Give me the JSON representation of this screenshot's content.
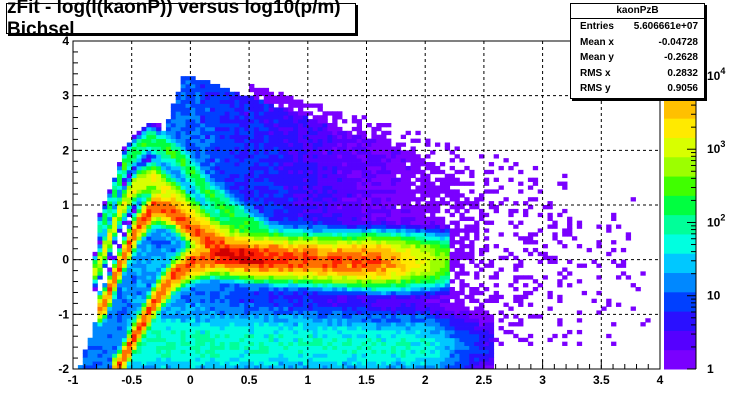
{
  "chart_data": {
    "type": "heatmap",
    "title": "zFit - log(I(kaonP)) versus log10(p/m) Bichsel",
    "xlabel": "",
    "ylabel": "",
    "xlim": [
      -1,
      4
    ],
    "ylim": [
      -2,
      4
    ],
    "x_ticks": [
      "-1",
      "-0.5",
      "0",
      "0.5",
      "1",
      "1.5",
      "2",
      "2.5",
      "3",
      "3.5",
      "4"
    ],
    "y_ticks": [
      "-2",
      "-1",
      "0",
      "1",
      "2",
      "3",
      "4"
    ],
    "z_scale": "log",
    "z_ticks": [
      {
        "value": 1,
        "base": "1",
        "exp": ""
      },
      {
        "value": 10,
        "base": "10",
        "exp": ""
      },
      {
        "value": 100,
        "base": "10",
        "exp": "2"
      },
      {
        "value": 1000,
        "base": "10",
        "exp": "3"
      },
      {
        "value": 10000,
        "base": "10",
        "exp": "4"
      }
    ],
    "z_range": [
      1,
      30000
    ],
    "grid": true,
    "bands": [
      {
        "name": "main",
        "x_start": -0.62,
        "x_end": 1.6,
        "center": [
          [
            -0.62,
            -2.0
          ],
          [
            -0.45,
            -1.3
          ],
          [
            -0.3,
            -0.75
          ],
          [
            -0.15,
            -0.3
          ],
          [
            0.0,
            -0.05
          ],
          [
            0.2,
            0.05
          ],
          [
            0.5,
            0.03
          ],
          [
            1.0,
            0.0
          ],
          [
            1.6,
            -0.02
          ]
        ],
        "peak": 9000
      },
      {
        "name": "upper",
        "x_start": -0.75,
        "x_end": 0.55,
        "center": [
          [
            -0.75,
            -0.9
          ],
          [
            -0.6,
            -0.1
          ],
          [
            -0.45,
            0.6
          ],
          [
            -0.3,
            1.0
          ],
          [
            -0.15,
            0.9
          ],
          [
            0.05,
            0.5
          ],
          [
            0.3,
            0.15
          ],
          [
            0.55,
            0.03
          ]
        ],
        "peak": 9000
      },
      {
        "name": "upper-2",
        "x_start": -0.8,
        "x_end": 0.6,
        "center": [
          [
            -0.8,
            -0.2
          ],
          [
            -0.6,
            0.9
          ],
          [
            -0.45,
            1.4
          ],
          [
            -0.3,
            1.5
          ],
          [
            -0.1,
            1.1
          ],
          [
            0.2,
            0.5
          ],
          [
            0.6,
            0.1
          ]
        ],
        "peak": 1500
      },
      {
        "name": "upper-3",
        "x_start": -0.75,
        "x_end": 0.7,
        "center": [
          [
            -0.75,
            0.6
          ],
          [
            -0.55,
            1.8
          ],
          [
            -0.35,
            2.2
          ],
          [
            -0.1,
            1.9
          ],
          [
            0.2,
            1.1
          ],
          [
            0.7,
            0.3
          ]
        ],
        "peak": 200
      },
      {
        "name": "lower",
        "x_start": -0.5,
        "x_end": 2.0,
        "center": [
          [
            -0.5,
            -1.5
          ],
          [
            0.0,
            -1.55
          ],
          [
            1.0,
            -1.55
          ],
          [
            2.0,
            -1.6
          ]
        ],
        "peak": 60
      }
    ],
    "colors": {
      "palette": [
        "#7a00ff",
        "#5500ff",
        "#2a10ff",
        "#0040ff",
        "#0088ff",
        "#00c8ff",
        "#00ffe0",
        "#00ff99",
        "#00ff40",
        "#40ff00",
        "#9cff00",
        "#d8ff00",
        "#ffea00",
        "#ffc000",
        "#ff7000",
        "#ff2000",
        "#d00000"
      ]
    }
  },
  "stats": {
    "name": "kaonPzB",
    "rows": [
      {
        "label": "Entries",
        "value": "5.606661e+07"
      },
      {
        "label": "Mean x",
        "value": "-0.04728"
      },
      {
        "label": "Mean y",
        "value": "-0.2628"
      },
      {
        "label": "RMS x",
        "value": "0.2832"
      },
      {
        "label": "RMS y",
        "value": "0.9056"
      }
    ]
  }
}
